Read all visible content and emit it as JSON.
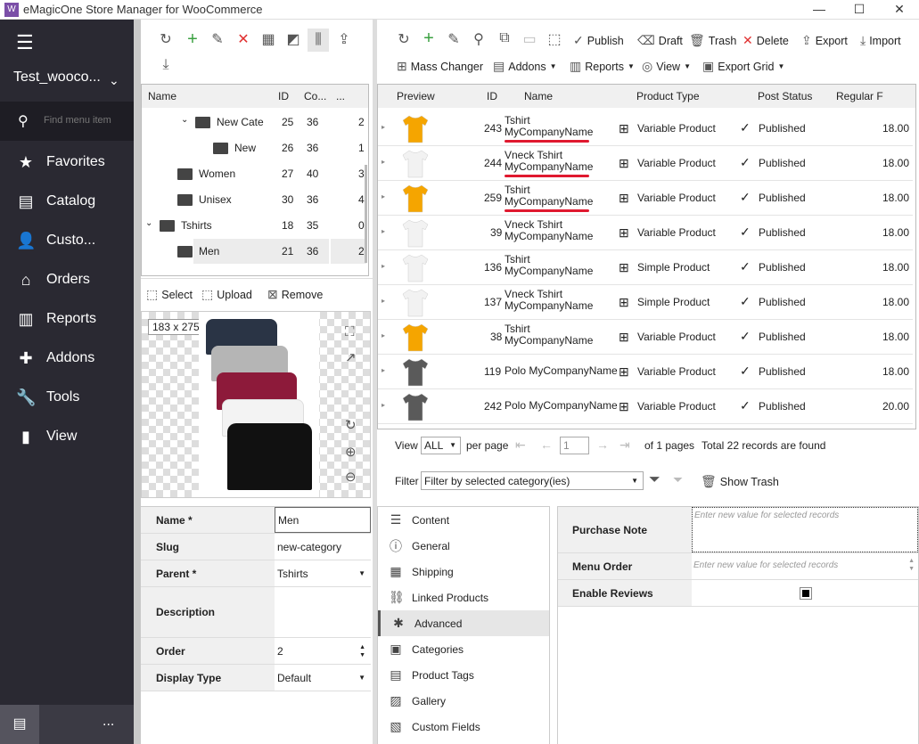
{
  "app": {
    "title": "eMagicOne Store Manager for WooCommerce",
    "logo": "W"
  },
  "sidebar": {
    "store": "Test_wooco...",
    "search_placeholder": "Find menu item",
    "items": [
      {
        "label": "Favorites",
        "icon": "star-icon"
      },
      {
        "label": "Catalog",
        "icon": "catalog-icon"
      },
      {
        "label": "Custo...",
        "icon": "user-icon"
      },
      {
        "label": "Orders",
        "icon": "basket-icon"
      },
      {
        "label": "Reports",
        "icon": "chart-icon"
      },
      {
        "label": "Addons",
        "icon": "puzzle-icon"
      },
      {
        "label": "Tools",
        "icon": "wrench-icon"
      },
      {
        "label": "View",
        "icon": "view-icon"
      }
    ],
    "more": "..."
  },
  "categories": {
    "headers": [
      "Name",
      "ID",
      "Co...",
      "..."
    ],
    "rows": [
      {
        "name": "New Cat⁠e",
        "id": "25",
        "count": "36",
        "x": "2",
        "level": 2,
        "expand": true
      },
      {
        "name": "New",
        "id": "26",
        "count": "36",
        "x": "1",
        "level": 3
      },
      {
        "name": "Women",
        "id": "27",
        "count": "40",
        "x": "3",
        "level": 1
      },
      {
        "name": "Unisex",
        "id": "30",
        "count": "36",
        "x": "4",
        "level": 1
      },
      {
        "name": "Tshirts",
        "id": "18",
        "count": "35",
        "x": "0",
        "level": 0,
        "expand": true
      },
      {
        "name": "Men",
        "id": "21",
        "count": "36",
        "x": "2",
        "level": 1,
        "selected": true
      }
    ]
  },
  "image_toolbar": {
    "select": "Select",
    "upload": "Upload",
    "remove": "Remove"
  },
  "image": {
    "size": "183 x 275"
  },
  "cat_props": [
    {
      "k": "Name *",
      "v": "Men"
    },
    {
      "k": "Slug",
      "v": "new-category"
    },
    {
      "k": "Parent *",
      "v": "Tshirts"
    },
    {
      "k": "Description",
      "v": ""
    },
    {
      "k": "Order",
      "v": "2"
    },
    {
      "k": "Display Type",
      "v": "Default"
    }
  ],
  "toolbar": {
    "publish": "Publish",
    "draft": "Draft",
    "trash": "Trash",
    "delete": "Delete",
    "export": "Export",
    "import": "Import",
    "mass_changer": "Mass Changer",
    "addons": "Addons",
    "reports": "Reports",
    "view": "View",
    "export_grid": "Export Grid"
  },
  "grid": {
    "headers": [
      "Preview",
      "ID",
      "Name",
      "Product Type",
      "Post Status",
      "Regular F"
    ],
    "rows": [
      {
        "id": "243",
        "name": "Tshirt MyCompanyName",
        "l1": "Tshirt",
        "l2": "MyCompanyName",
        "type": "Variable Product",
        "status": "Published",
        "price": "18.00",
        "color": "#f5a500",
        "underline": true
      },
      {
        "id": "244",
        "l1": "Vneck Tshirt",
        "l2": "MyCompanyName",
        "type": "Variable Product",
        "status": "Published",
        "price": "18.00",
        "color": "#f2f2f2",
        "underline": true
      },
      {
        "id": "259",
        "l1": "Tshirt",
        "l2": "MyCompanyName",
        "type": "Variable Product",
        "status": "Published",
        "price": "18.00",
        "color": "#f5a500",
        "underline": true
      },
      {
        "id": "39",
        "l1": "Vneck Tshirt",
        "l2": "MyCompanyName",
        "type": "Variable Product",
        "status": "Published",
        "price": "18.00",
        "color": "#f2f2f2"
      },
      {
        "id": "136",
        "l1": "Tshirt",
        "l2": "MyCompanyName",
        "type": "Simple Product",
        "status": "Published",
        "price": "18.00",
        "color": "#f2f2f2"
      },
      {
        "id": "137",
        "l1": "Vneck Tshirt",
        "l2": "MyCompanyName",
        "type": "Simple Product",
        "status": "Published",
        "price": "18.00",
        "color": "#f2f2f2"
      },
      {
        "id": "38",
        "l1": "Tshirt",
        "l2": "MyCompanyName",
        "type": "Variable Product",
        "status": "Published",
        "price": "18.00",
        "color": "#f5a500"
      },
      {
        "id": "119",
        "l1": "Polo MyCompanyName",
        "l2": "",
        "type": "Variable Product",
        "status": "Published",
        "price": "18.00",
        "color": "#5a5a5a"
      },
      {
        "id": "242",
        "l1": "Polo MyCompanyName",
        "l2": "",
        "type": "Variable Product",
        "status": "Published",
        "price": "20.00",
        "color": "#5a5a5a"
      }
    ]
  },
  "pager": {
    "view": "View",
    "per_page_value": "ALL",
    "per_page": "per page",
    "page": "1",
    "of_pages": "of 1 pages",
    "total": "Total 22 records are found"
  },
  "filter": {
    "label": "Filter",
    "value": "Filter by selected category(ies)",
    "show_trash": "Show Trash"
  },
  "nav": [
    {
      "label": "Content",
      "icon": "list-icon"
    },
    {
      "label": "General",
      "icon": "info-icon"
    },
    {
      "label": "Shipping",
      "icon": "shipping-icon"
    },
    {
      "label": "Linked Products",
      "icon": "link-icon"
    },
    {
      "label": "Advanced",
      "icon": "asterisk-icon",
      "active": true
    },
    {
      "label": "Categories",
      "icon": "categories-icon"
    },
    {
      "label": "Product Tags",
      "icon": "tag-icon"
    },
    {
      "label": "Gallery",
      "icon": "gallery-icon"
    },
    {
      "label": "Custom Fields",
      "icon": "fields-icon"
    }
  ],
  "props": [
    {
      "k": "Purchase Note",
      "placeholder": "Enter new value for selected records"
    },
    {
      "k": "Menu Order",
      "placeholder": "Enter new value for selected records"
    },
    {
      "k": "Enable Reviews",
      "checked": true
    }
  ],
  "colors": {
    "sidebar": "#2a2932",
    "accent": "#7b4fa8",
    "underline": "#e0192f",
    "add": "#3aa040",
    "delete": "#e03030"
  }
}
